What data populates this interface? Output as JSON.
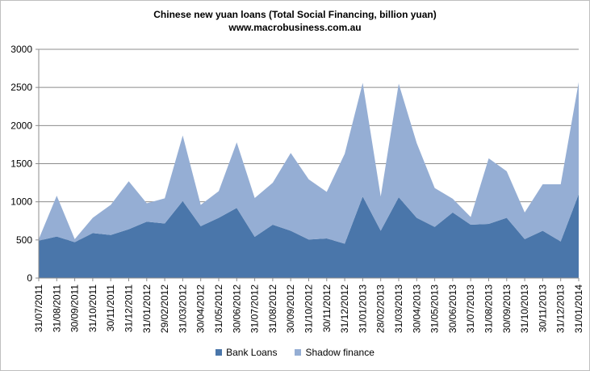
{
  "chart_data": {
    "type": "area",
    "stacked": true,
    "title": "Chinese new yuan loans  (Total Social  Financing,  billion yuan)",
    "subtitle": "www.macrobusiness.com.au",
    "xlabel": "",
    "ylabel": "",
    "ylim": [
      0,
      3000
    ],
    "yticks": [
      "0",
      "500",
      "1000",
      "1500",
      "2000",
      "2500",
      "3000"
    ],
    "grid": "horizontal",
    "legend_position": "bottom",
    "categories": [
      "31/07/2011",
      "31/08/2011",
      "30/09/2011",
      "31/10/2011",
      "30/11/2011",
      "31/12/2011",
      "31/01/2012",
      "29/02/2012",
      "31/03/2012",
      "30/04/2012",
      "31/05/2012",
      "30/06/2012",
      "31/07/2012",
      "31/08/2012",
      "30/09/2012",
      "31/10/2012",
      "30/11/2012",
      "31/12/2012",
      "31/01/2013",
      "28/02/2013",
      "31/03/2013",
      "30/04/2013",
      "31/05/2013",
      "30/06/2013",
      "31/07/2013",
      "31/08/2013",
      "30/09/2013",
      "31/10/2013",
      "30/11/2013",
      "31/12/2013",
      "31/01/2014"
    ],
    "series": [
      {
        "name": "Bank Loans",
        "color": "#4a76aa",
        "values": [
          490,
          545,
          470,
          590,
          565,
          640,
          740,
          715,
          1010,
          680,
          790,
          920,
          540,
          700,
          620,
          505,
          520,
          450,
          1070,
          620,
          1060,
          790,
          670,
          860,
          700,
          710,
          790,
          510,
          620,
          480,
          1100
        ]
      },
      {
        "name": "Shadow finance",
        "color": "#95aed4",
        "values": [
          20,
          535,
          40,
          200,
          395,
          630,
          240,
          330,
          860,
          280,
          350,
          860,
          510,
          550,
          1020,
          790,
          610,
          1180,
          1490,
          450,
          1490,
          980,
          510,
          180,
          100,
          860,
          610,
          350,
          610,
          750,
          1470
        ]
      }
    ]
  }
}
